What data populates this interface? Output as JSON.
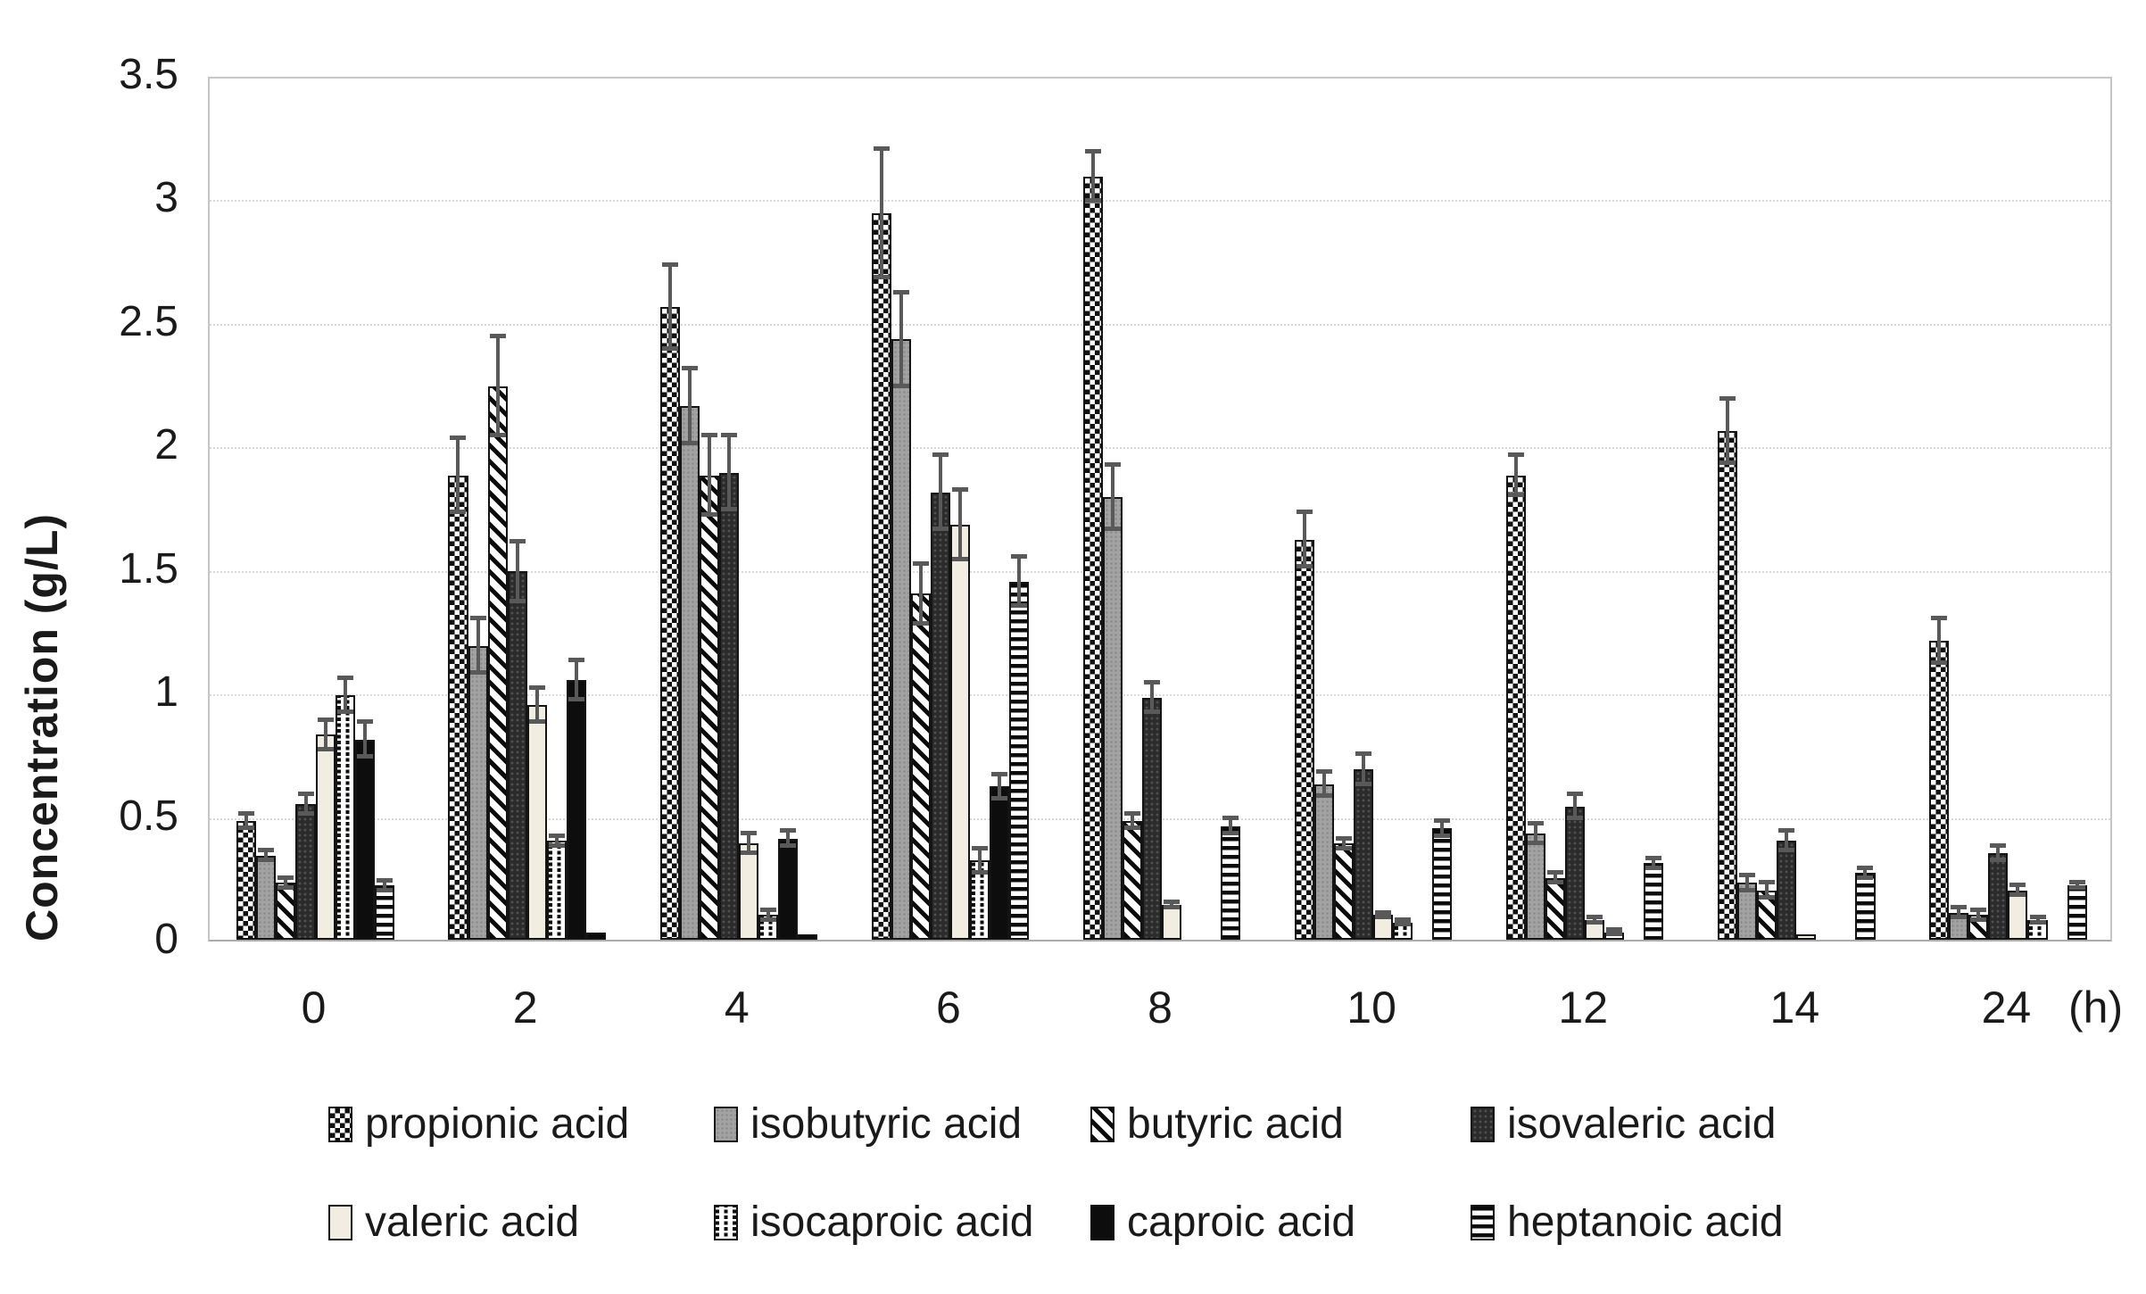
{
  "colors": {
    "error_bar": "#595959",
    "gridline": "#d8d8d8",
    "plot_border": "#c6c6c6",
    "text": "#1a1a1a"
  },
  "chart_data": {
    "type": "bar",
    "title": "",
    "ylabel": "Concentration (g/L)",
    "x_unit_label": "(h)",
    "ylim": [
      0,
      3.5
    ],
    "ytick_labels": [
      "3.5",
      "3",
      "2.5",
      "2",
      "1.5",
      "1",
      "0.5",
      "0"
    ],
    "ytick_values": [
      3.5,
      3.0,
      2.5,
      2.0,
      1.5,
      1.0,
      0.5,
      0
    ],
    "grid": true,
    "legend_position": "bottom",
    "categories": [
      "0",
      "2",
      "4",
      "6",
      "8",
      "10",
      "12",
      "14",
      "24"
    ],
    "series": [
      {
        "name": "propionic acid",
        "pattern": "checkerboard",
        "values": [
          0.48,
          1.88,
          2.56,
          2.94,
          3.09,
          1.62,
          1.88,
          2.06,
          1.21
        ],
        "errors": [
          0.03,
          0.15,
          0.17,
          0.26,
          0.1,
          0.11,
          0.08,
          0.13,
          0.09
        ]
      },
      {
        "name": "isobutyric acid",
        "pattern": "solid-gray",
        "values": [
          0.34,
          1.19,
          2.16,
          2.43,
          1.79,
          0.63,
          0.43,
          0.23,
          0.11
        ],
        "errors": [
          0.02,
          0.11,
          0.15,
          0.19,
          0.13,
          0.05,
          0.04,
          0.03,
          0.02
        ]
      },
      {
        "name": "butyric acid",
        "pattern": "diagonal-stripes",
        "values": [
          0.23,
          2.24,
          1.88,
          1.4,
          0.48,
          0.39,
          0.25,
          0.2,
          0.1
        ],
        "errors": [
          0.02,
          0.2,
          0.16,
          0.12,
          0.03,
          0.02,
          0.02,
          0.03,
          0.02
        ]
      },
      {
        "name": "isovaleric acid",
        "pattern": "dark-dotted",
        "values": [
          0.55,
          1.49,
          1.89,
          1.81,
          0.98,
          0.69,
          0.54,
          0.4,
          0.35
        ],
        "errors": [
          0.04,
          0.12,
          0.15,
          0.15,
          0.06,
          0.06,
          0.05,
          0.04,
          0.03
        ]
      },
      {
        "name": "valeric acid",
        "pattern": "solid-cream",
        "values": [
          0.83,
          0.95,
          0.39,
          1.68,
          0.14,
          0.1,
          0.08,
          0.02,
          0.2
        ],
        "errors": [
          0.06,
          0.07,
          0.04,
          0.14,
          0.01,
          0.01,
          0.01,
          0.0,
          0.02
        ]
      },
      {
        "name": "isocaproic acid",
        "pattern": "dashed-grid",
        "values": [
          0.99,
          0.4,
          0.1,
          0.32,
          0.0,
          0.07,
          0.03,
          0.0,
          0.08
        ],
        "errors": [
          0.07,
          0.02,
          0.02,
          0.05,
          0.0,
          0.01,
          0.01,
          0.0,
          0.01
        ]
      },
      {
        "name": "caproic acid",
        "pattern": "solid-black",
        "values": [
          0.81,
          1.05,
          0.41,
          0.62,
          0.0,
          0.0,
          0.0,
          0.0,
          0.0
        ],
        "errors": [
          0.07,
          0.08,
          0.03,
          0.05,
          0.0,
          0.0,
          0.0,
          0.0,
          0.0
        ]
      },
      {
        "name": "heptanoic acid",
        "pattern": "horizontal-stripes",
        "values": [
          0.22,
          0.03,
          0.02,
          1.45,
          0.46,
          0.45,
          0.31,
          0.27,
          0.22
        ],
        "errors": [
          0.02,
          0.0,
          0.0,
          0.1,
          0.03,
          0.03,
          0.02,
          0.02,
          0.01
        ]
      }
    ]
  }
}
